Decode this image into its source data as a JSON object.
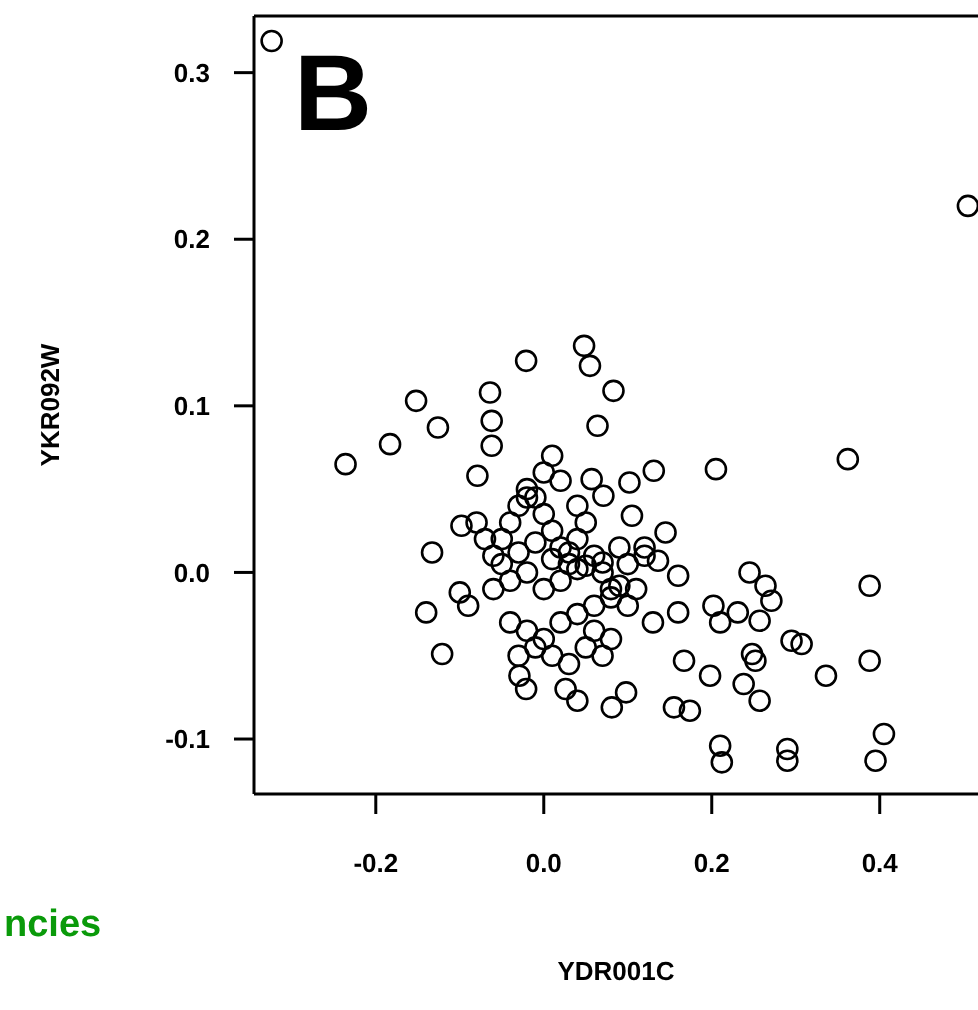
{
  "chart_data": {
    "type": "scatter",
    "xlabel": "YDR001C",
    "ylabel": "YKR092W",
    "annotations": [
      "B",
      "ncies"
    ],
    "marker": "circle",
    "xlim": [
      -0.345,
      0.517
    ],
    "xticks": [
      {
        "value": -0.2,
        "label": "-0.2"
      },
      {
        "value": 0,
        "label": "0.0"
      },
      {
        "value": 0.2,
        "label": "0.2"
      },
      {
        "value": 0.4,
        "label": "0.4"
      }
    ],
    "ylim": [
      -0.133,
      0.334
    ],
    "yticks": [
      {
        "value": -0.1,
        "label": "-0.1"
      },
      {
        "value": 0,
        "label": "0.0"
      },
      {
        "value": 0.1,
        "label": "0.1"
      },
      {
        "value": 0.2,
        "label": "0.2"
      },
      {
        "value": 0.3,
        "label": "0.3"
      }
    ],
    "series": [
      {
        "color": "#000000",
        "x": [
          -0.324,
          0.505,
          -0.236,
          -0.183,
          -0.152,
          -0.126,
          -0.064,
          -0.062,
          -0.062,
          -0.021,
          0.048,
          0.055,
          0.083,
          0.064,
          0.131,
          0.205,
          0.362,
          0.388,
          0.388,
          0.405,
          0.395,
          0.21,
          0.212,
          0.29,
          0.29,
          0.336,
          0.295,
          0.307,
          0.252,
          0.248,
          0.198,
          0.174,
          0.155,
          0.257,
          0.238,
          0.231,
          0.245,
          0.264,
          0.271,
          0.257,
          0.202,
          0.21,
          0.167,
          0.16,
          0.098,
          0.081,
          0.04,
          0.026,
          -0.021,
          -0.029,
          -0.121,
          -0.14,
          -0.133,
          -0.1,
          -0.098,
          -0.079,
          0.01,
          0.102,
          0.145,
          0.136,
          0.16,
          0.105,
          0.057,
          0.071,
          -0.06,
          -0.05,
          -0.04,
          -0.03,
          -0.02,
          -0.01,
          0,
          0.01,
          0.02,
          0.03,
          0.04,
          0.05,
          0.06,
          0.07,
          0.08,
          0.09,
          0.1,
          0.11,
          -0.06,
          -0.04,
          -0.02,
          0,
          0.02,
          0.04,
          0.06,
          0.08,
          0.1,
          -0.07,
          -0.05,
          -0.03,
          -0.01,
          0.01,
          0.03,
          0.05,
          0.07,
          0.09,
          0.12,
          -0.04,
          -0.02,
          0,
          0.02,
          0.04,
          0.06,
          0.08,
          -0.03,
          -0.01,
          0.01,
          0.03,
          0.05,
          0.07,
          -0.08,
          -0.09,
          0.12,
          0.13,
          0,
          0.02,
          -0.02,
          0.04
        ],
        "values": [
          0.319,
          0.22,
          0.065,
          0.077,
          0.103,
          0.087,
          0.108,
          0.091,
          0.076,
          0.127,
          0.136,
          0.124,
          0.109,
          0.088,
          0.061,
          0.062,
          0.068,
          -0.008,
          -0.053,
          -0.097,
          -0.113,
          -0.104,
          -0.114,
          -0.106,
          -0.113,
          -0.062,
          -0.041,
          -0.043,
          -0.053,
          -0.049,
          -0.062,
          -0.083,
          -0.081,
          -0.077,
          -0.067,
          -0.024,
          0,
          -0.008,
          -0.017,
          -0.029,
          -0.02,
          -0.03,
          -0.053,
          -0.024,
          -0.072,
          -0.081,
          -0.077,
          -0.07,
          -0.07,
          -0.062,
          -0.049,
          -0.024,
          0.012,
          -0.012,
          0.028,
          0.058,
          0.07,
          0.054,
          0.024,
          0.007,
          -0.002,
          0.034,
          0.056,
          0.046,
          0.01,
          0.02,
          0.03,
          0.04,
          0.05,
          0.045,
          0.035,
          0.025,
          0.015,
          0.005,
          0.02,
          0.03,
          0.01,
          0,
          -0.01,
          0.015,
          0.005,
          -0.01,
          -0.01,
          -0.005,
          0,
          -0.01,
          -0.005,
          0.002,
          -0.02,
          -0.015,
          -0.02,
          0.02,
          0.005,
          0.012,
          0.018,
          0.008,
          0.012,
          0.004,
          0.006,
          -0.008,
          0.01,
          -0.03,
          -0.035,
          -0.04,
          -0.03,
          -0.025,
          -0.035,
          -0.04,
          -0.05,
          -0.045,
          -0.05,
          -0.055,
          -0.045,
          -0.05,
          0.03,
          -0.02,
          0.015,
          -0.03,
          0.06,
          0.055,
          0.045,
          0.04
        ]
      }
    ]
  }
}
